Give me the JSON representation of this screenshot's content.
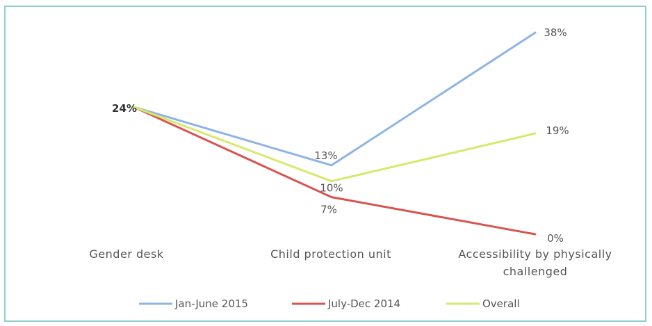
{
  "chart_data": {
    "type": "line",
    "categories": [
      "Gender desk",
      "Child protection unit",
      "Accessibility by physically challenged"
    ],
    "category_display": [
      [
        "Gender desk"
      ],
      [
        "Child protection unit"
      ],
      [
        "Accessibility by physically",
        "challenged"
      ]
    ],
    "series": [
      {
        "name": "Jan-June 2015",
        "values": [
          24,
          13,
          38
        ],
        "labels": [
          "",
          "13%",
          "38%"
        ],
        "color": "#8eb4e3"
      },
      {
        "name": "July-Dec 2014",
        "values": [
          24,
          7,
          0
        ],
        "labels": [
          "",
          "7%",
          "0%"
        ],
        "color": "#d9534f"
      },
      {
        "name": "Overall",
        "values": [
          24,
          10,
          19
        ],
        "labels": [
          "24%",
          "10%",
          "19%"
        ],
        "color": "#d7e86a"
      }
    ],
    "ylim": [
      0,
      38
    ],
    "grid": false,
    "legend": "bottom",
    "title": "",
    "xlabel": "",
    "ylabel": ""
  }
}
